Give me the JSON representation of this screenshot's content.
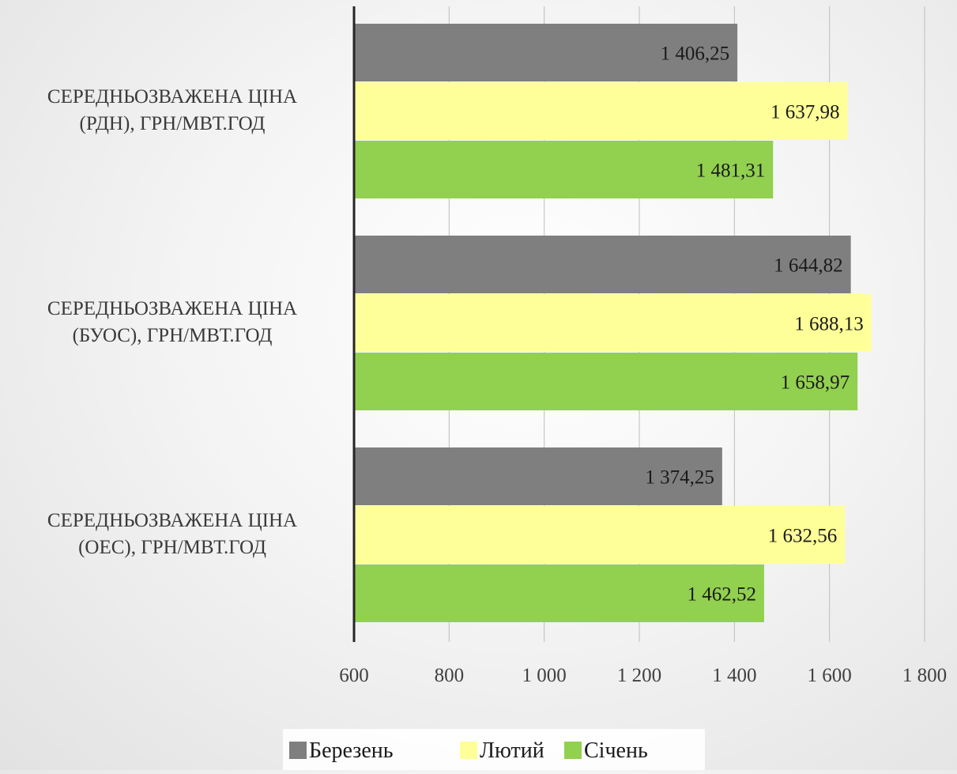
{
  "chart_data": {
    "type": "bar",
    "orientation": "horizontal",
    "title": "",
    "xlabel": "",
    "ylabel": "",
    "categories": [
      [
        "СЕРЕДНЬОЗВАЖЕНА ЦІНА",
        "(РДН), ГРН/МВТ.ГОД"
      ],
      [
        "СЕРЕДНЬОЗВАЖЕНА ЦІНА",
        "(БУОС), ГРН/МВТ.ГОД"
      ],
      [
        "СЕРЕДНЬОЗВАЖЕНА ЦІНА",
        "(ОЕС), ГРН/МВТ.ГОД"
      ]
    ],
    "series": [
      {
        "name": "Березень",
        "color": "#7f7f7f",
        "values": [
          1406.25,
          1644.82,
          1374.25
        ],
        "labels": [
          "1 406,25",
          "1 644,82",
          "1 374,25"
        ]
      },
      {
        "name": "Лютий",
        "color": "#ffff99",
        "values": [
          1637.98,
          1688.13,
          1632.56
        ],
        "labels": [
          "1 637,98",
          "1 688,13",
          "1 632,56"
        ]
      },
      {
        "name": "Січень",
        "color": "#92d050",
        "values": [
          1481.31,
          1658.97,
          1462.52
        ],
        "labels": [
          "1 481,31",
          "1 658,97",
          "1 462,52"
        ]
      }
    ],
    "xlim": [
      600,
      1800
    ],
    "ticks": [
      {
        "value": 600,
        "label": "600"
      },
      {
        "value": 800,
        "label": "800"
      },
      {
        "value": 1000,
        "label": "1 000"
      },
      {
        "value": 1200,
        "label": "1 200"
      },
      {
        "value": 1400,
        "label": "1 400"
      },
      {
        "value": 1600,
        "label": "1 600"
      },
      {
        "value": 1800,
        "label": "1 800"
      }
    ],
    "grid": true,
    "legend": "bottom"
  }
}
